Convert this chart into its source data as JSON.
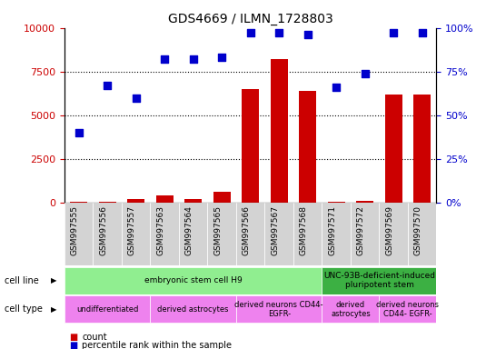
{
  "title": "GDS4669 / ILMN_1728803",
  "samples": [
    "GSM997555",
    "GSM997556",
    "GSM997557",
    "GSM997563",
    "GSM997564",
    "GSM997565",
    "GSM997566",
    "GSM997567",
    "GSM997568",
    "GSM997571",
    "GSM997572",
    "GSM997569",
    "GSM997570"
  ],
  "counts": [
    50,
    60,
    200,
    400,
    200,
    600,
    6500,
    8200,
    6400,
    50,
    100,
    6200,
    6200
  ],
  "percentiles": [
    40,
    67,
    60,
    82,
    82,
    83,
    97,
    97,
    96,
    66,
    74,
    97,
    97
  ],
  "ylim_left": [
    0,
    10000
  ],
  "ylim_right": [
    0,
    100
  ],
  "yticks_left": [
    0,
    2500,
    5000,
    7500,
    10000
  ],
  "yticks_right": [
    0,
    25,
    50,
    75,
    100
  ],
  "bar_color": "#cc0000",
  "dot_color": "#0000cc",
  "cell_line_groups": [
    {
      "label": "embryonic stem cell H9",
      "start": 0,
      "end": 9,
      "color": "#90ee90"
    },
    {
      "label": "UNC-93B-deficient-induced\npluripotent stem",
      "start": 9,
      "end": 13,
      "color": "#3cb043"
    }
  ],
  "cell_type_groups": [
    {
      "label": "undifferentiated",
      "start": 0,
      "end": 3,
      "color": "#ee82ee"
    },
    {
      "label": "derived astrocytes",
      "start": 3,
      "end": 6,
      "color": "#ee82ee"
    },
    {
      "label": "derived neurons CD44-\nEGFR-",
      "start": 6,
      "end": 9,
      "color": "#ee82ee"
    },
    {
      "label": "derived\nastrocytes",
      "start": 9,
      "end": 11,
      "color": "#ee82ee"
    },
    {
      "label": "derived neurons\nCD44- EGFR-",
      "start": 11,
      "end": 13,
      "color": "#ee82ee"
    }
  ],
  "legend_count_color": "#cc0000",
  "legend_pct_color": "#0000cc",
  "background_color": "#ffffff",
  "tick_label_color_left": "#cc0000",
  "tick_label_color_right": "#0000cc",
  "xtick_bg_color": "#d3d3d3",
  "cell_line_label": "cell line",
  "cell_type_label": "cell type"
}
